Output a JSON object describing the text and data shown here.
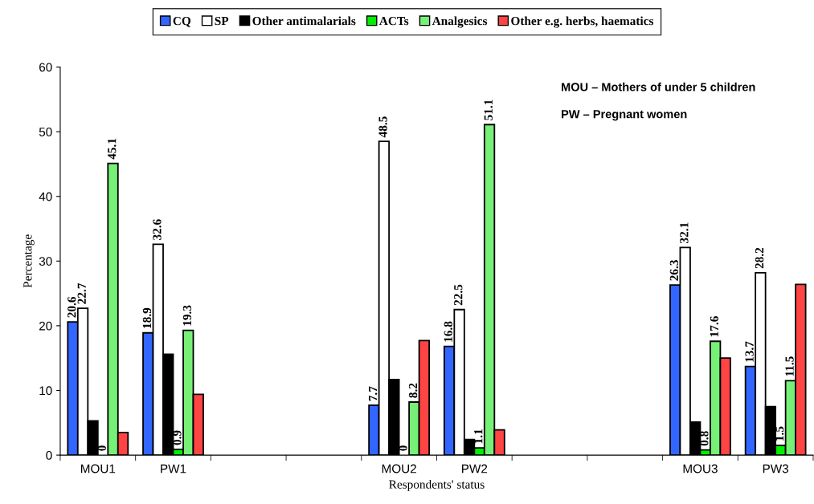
{
  "chart_data": {
    "type": "bar",
    "xlabel": "Respondents' status",
    "ylabel": "Percentage",
    "categories": [
      "MOU1",
      "PW1",
      null,
      null,
      "MOU2",
      "PW2",
      null,
      null,
      "MOU3",
      "PW3"
    ],
    "series": [
      {
        "name": "CQ",
        "color": "#3366ff",
        "values": [
          20.6,
          18.9,
          null,
          null,
          7.7,
          16.8,
          null,
          null,
          26.3,
          13.7
        ],
        "value_labels": [
          "20.6",
          "18.9",
          null,
          null,
          "7.7",
          "16.8",
          null,
          null,
          "26.3",
          "13.7"
        ]
      },
      {
        "name": "SP",
        "color": "#ffffff",
        "values": [
          22.7,
          32.6,
          null,
          null,
          48.5,
          22.5,
          null,
          null,
          32.1,
          28.2
        ],
        "value_labels": [
          "22.7",
          "32.6",
          null,
          null,
          "48.5",
          "22.5",
          null,
          null,
          "32.1",
          "28.2"
        ]
      },
      {
        "name": "Other antimalarials",
        "color": "#000000",
        "values": [
          5.3,
          15.6,
          null,
          null,
          11.7,
          2.4,
          null,
          null,
          5.1,
          7.5
        ]
      },
      {
        "name": "ACTs",
        "color": "#00ee00",
        "values": [
          0,
          0.9,
          null,
          null,
          0,
          1.1,
          null,
          null,
          0.8,
          1.5
        ],
        "value_labels": [
          "0",
          "0.9",
          null,
          null,
          "0",
          "1.1",
          null,
          null,
          "0.8",
          "1.5"
        ]
      },
      {
        "name": "Analgesics",
        "color": "#77f077",
        "values": [
          45.1,
          19.3,
          null,
          null,
          8.2,
          51.1,
          null,
          null,
          17.6,
          11.5
        ],
        "value_labels": [
          "45.1",
          "19.3",
          null,
          null,
          "8.2",
          "51.1",
          null,
          null,
          "17.6",
          "11.5"
        ]
      },
      {
        "name": "Other e.g. herbs, haematics",
        "color": "#ff4444",
        "values": [
          3.5,
          9.4,
          null,
          null,
          17.7,
          3.9,
          null,
          null,
          15.0,
          26.4
        ]
      }
    ],
    "ylim": [
      0,
      60
    ],
    "yticks": [
      0,
      10,
      20,
      30,
      40,
      50,
      60
    ],
    "grid": false,
    "legend": "top",
    "annotations": [
      "MOU – Mothers of under 5 children",
      "PW – Pregnant women"
    ]
  }
}
